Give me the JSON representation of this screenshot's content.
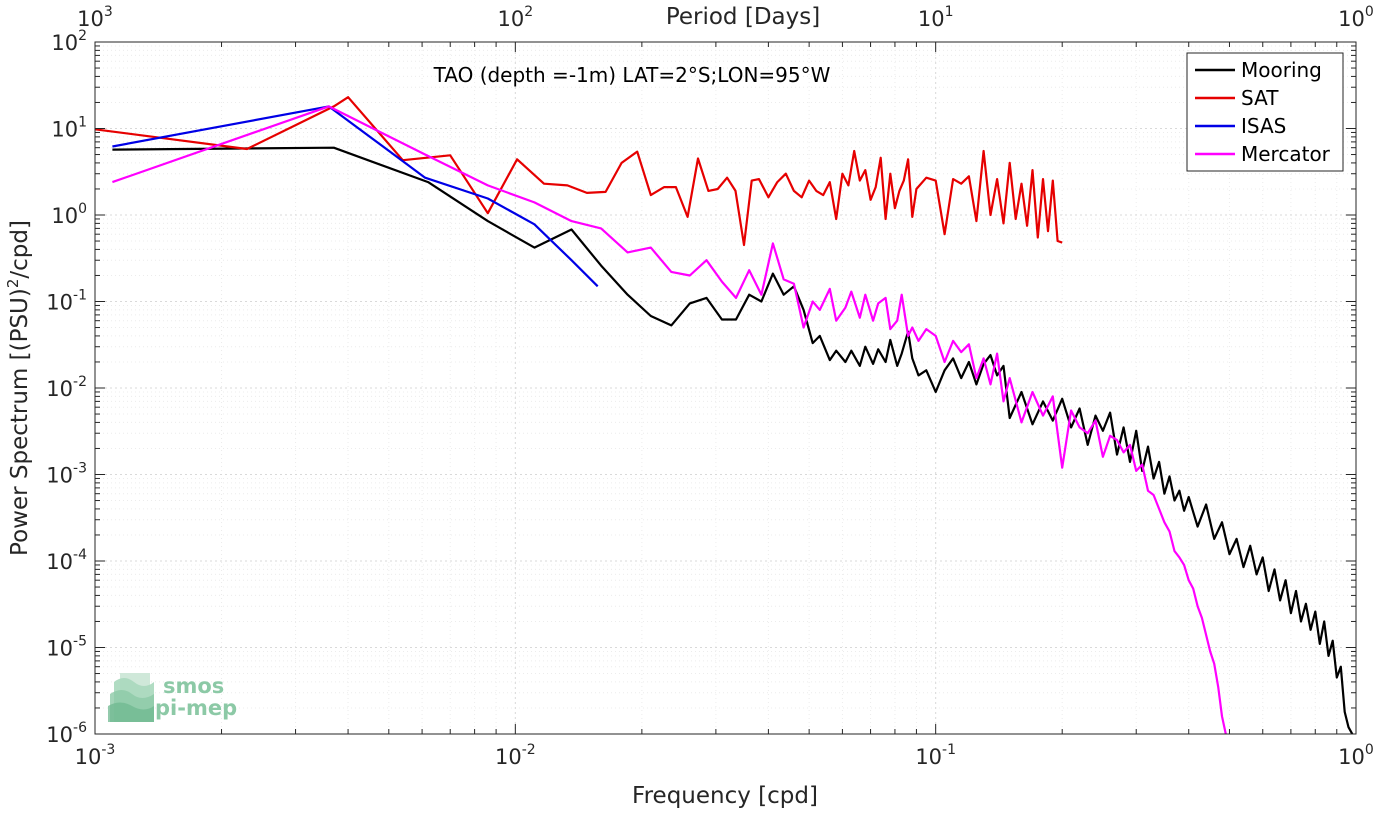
{
  "chart_data": {
    "type": "line",
    "title": "TAO (depth =-1m) LAT=2°S;LON=95°W",
    "xlabel": "Frequency [cpd]",
    "ylabel_prefix": "Power Spectrum [(PSU)",
    "ylabel_sup": "2",
    "ylabel_suffix": "/cpd]",
    "top_xlabel": "Period [Days]",
    "xscale": "log",
    "yscale": "log",
    "xlim": [
      0.001,
      1
    ],
    "ylim": [
      1e-06,
      100
    ],
    "grid": true,
    "minor_grid": true,
    "legend_position": "top-right",
    "x_ticks": [
      {
        "value": 0.001,
        "base": "10",
        "exp": "-3"
      },
      {
        "value": 0.01,
        "base": "10",
        "exp": "-2"
      },
      {
        "value": 0.1,
        "base": "10",
        "exp": "-1"
      },
      {
        "value": 1,
        "base": "10",
        "exp": "0"
      }
    ],
    "y_ticks": [
      {
        "value": 1e-06,
        "base": "10",
        "exp": "-6"
      },
      {
        "value": 1e-05,
        "base": "10",
        "exp": "-5"
      },
      {
        "value": 0.0001,
        "base": "10",
        "exp": "-4"
      },
      {
        "value": 0.001,
        "base": "10",
        "exp": "-3"
      },
      {
        "value": 0.01,
        "base": "10",
        "exp": "-2"
      },
      {
        "value": 0.1,
        "base": "10",
        "exp": "-1"
      },
      {
        "value": 1,
        "base": "10",
        "exp": "0"
      },
      {
        "value": 10,
        "base": "10",
        "exp": "1"
      },
      {
        "value": 100,
        "base": "10",
        "exp": "2"
      }
    ],
    "top_ticks": [
      {
        "value": 0.001,
        "base": "10",
        "exp": "3"
      },
      {
        "value": 0.01,
        "base": "10",
        "exp": "2"
      },
      {
        "value": 0.1,
        "base": "10",
        "exp": "1"
      },
      {
        "value": 1,
        "base": "10",
        "exp": "0"
      }
    ],
    "series": [
      {
        "name": "Mooring",
        "color": "#000000",
        "x": [
          0.0011,
          0.0037,
          0.0062,
          0.0086,
          0.0111,
          0.0136,
          0.016,
          0.0185,
          0.021,
          0.0235,
          0.026,
          0.0285,
          0.031,
          0.0335,
          0.036,
          0.0385,
          0.041,
          0.0435,
          0.046,
          0.0485,
          0.051,
          0.053,
          0.056,
          0.058,
          0.061,
          0.063,
          0.066,
          0.068,
          0.071,
          0.073,
          0.076,
          0.078,
          0.081,
          0.083,
          0.086,
          0.088,
          0.091,
          0.095,
          0.1,
          0.105,
          0.11,
          0.115,
          0.12,
          0.125,
          0.13,
          0.135,
          0.14,
          0.145,
          0.15,
          0.16,
          0.17,
          0.18,
          0.19,
          0.2,
          0.21,
          0.22,
          0.23,
          0.24,
          0.25,
          0.26,
          0.27,
          0.28,
          0.29,
          0.3,
          0.31,
          0.32,
          0.33,
          0.34,
          0.35,
          0.36,
          0.37,
          0.38,
          0.39,
          0.4,
          0.42,
          0.44,
          0.46,
          0.48,
          0.5,
          0.52,
          0.54,
          0.56,
          0.58,
          0.6,
          0.62,
          0.64,
          0.66,
          0.68,
          0.7,
          0.72,
          0.74,
          0.76,
          0.78,
          0.8,
          0.82,
          0.84,
          0.86,
          0.88,
          0.9,
          0.92,
          0.94,
          0.96,
          0.98
        ],
        "y": [
          5.7,
          6.0,
          2.4,
          0.85,
          0.42,
          0.68,
          0.26,
          0.12,
          0.068,
          0.053,
          0.095,
          0.11,
          0.062,
          0.062,
          0.12,
          0.1,
          0.21,
          0.12,
          0.15,
          0.08,
          0.033,
          0.04,
          0.021,
          0.027,
          0.02,
          0.027,
          0.018,
          0.03,
          0.019,
          0.028,
          0.02,
          0.036,
          0.018,
          0.025,
          0.045,
          0.022,
          0.014,
          0.016,
          0.009,
          0.016,
          0.022,
          0.013,
          0.02,
          0.011,
          0.019,
          0.024,
          0.014,
          0.018,
          0.0045,
          0.009,
          0.0038,
          0.007,
          0.0042,
          0.0075,
          0.0035,
          0.0058,
          0.0022,
          0.0048,
          0.0032,
          0.0052,
          0.0017,
          0.0035,
          0.0014,
          0.0032,
          0.0011,
          0.0021,
          0.0009,
          0.0014,
          0.0006,
          0.00095,
          0.0005,
          0.00065,
          0.00038,
          0.00055,
          0.00025,
          0.00045,
          0.00018,
          0.00028,
          0.00012,
          0.00018,
          8.5e-05,
          0.00015,
          7e-05,
          0.00011,
          4.5e-05,
          8e-05,
          3.5e-05,
          6e-05,
          2.5e-05,
          4.5e-05,
          2e-05,
          3.2e-05,
          1.6e-05,
          2.6e-05,
          1.1e-05,
          2e-05,
          8e-06,
          1.2e-05,
          4.5e-06,
          6e-06,
          1.8e-06,
          1.2e-06,
          8e-07
        ]
      },
      {
        "name": "SAT",
        "color": "#e60000",
        "x": [
          0.001,
          0.0023,
          0.0037,
          0.004,
          0.0054,
          0.007,
          0.0086,
          0.0101,
          0.0117,
          0.0133,
          0.0148,
          0.0164,
          0.0179,
          0.0195,
          0.021,
          0.0226,
          0.0241,
          0.0257,
          0.0272,
          0.0288,
          0.0303,
          0.0319,
          0.0334,
          0.035,
          0.0365,
          0.038,
          0.04,
          0.042,
          0.044,
          0.046,
          0.048,
          0.05,
          0.052,
          0.054,
          0.056,
          0.058,
          0.06,
          0.062,
          0.064,
          0.066,
          0.068,
          0.07,
          0.072,
          0.074,
          0.076,
          0.078,
          0.08,
          0.082,
          0.084,
          0.086,
          0.088,
          0.09,
          0.095,
          0.1,
          0.105,
          0.11,
          0.115,
          0.12,
          0.125,
          0.13,
          0.135,
          0.14,
          0.145,
          0.15,
          0.155,
          0.16,
          0.165,
          0.17,
          0.175,
          0.18,
          0.185,
          0.19,
          0.195,
          0.2
        ],
        "y": [
          9.8,
          5.8,
          18.0,
          23.0,
          4.3,
          4.9,
          1.05,
          4.4,
          2.3,
          2.2,
          1.8,
          1.85,
          4.0,
          5.4,
          1.7,
          2.1,
          2.1,
          0.95,
          4.5,
          1.9,
          2.0,
          2.7,
          1.9,
          0.45,
          2.5,
          2.6,
          1.6,
          2.4,
          3.0,
          1.9,
          1.6,
          2.5,
          1.9,
          1.7,
          2.4,
          0.9,
          3.0,
          2.2,
          5.5,
          2.5,
          3.3,
          1.5,
          2.1,
          4.6,
          0.9,
          3.0,
          1.2,
          1.9,
          2.5,
          4.4,
          0.95,
          2.0,
          2.7,
          2.5,
          0.6,
          2.6,
          2.3,
          2.8,
          0.85,
          5.5,
          1.0,
          2.6,
          0.8,
          4.0,
          0.9,
          2.3,
          0.75,
          3.3,
          0.55,
          2.6,
          0.65,
          2.5,
          0.5,
          0.48
        ]
      },
      {
        "name": "ISAS",
        "color": "#0000e6",
        "x": [
          0.0011,
          0.0036,
          0.0061,
          0.0086,
          0.0111,
          0.0136,
          0.0157
        ],
        "y": [
          6.2,
          18.0,
          2.7,
          1.55,
          0.78,
          0.3,
          0.15
        ]
      },
      {
        "name": "Mercator",
        "color": "#ff00ff",
        "x": [
          0.0011,
          0.0036,
          0.0061,
          0.0086,
          0.0111,
          0.0136,
          0.016,
          0.0185,
          0.021,
          0.0235,
          0.026,
          0.0285,
          0.031,
          0.0335,
          0.036,
          0.0385,
          0.041,
          0.0435,
          0.046,
          0.0485,
          0.051,
          0.053,
          0.056,
          0.058,
          0.061,
          0.063,
          0.066,
          0.068,
          0.071,
          0.073,
          0.076,
          0.078,
          0.081,
          0.083,
          0.086,
          0.088,
          0.091,
          0.095,
          0.1,
          0.105,
          0.11,
          0.115,
          0.12,
          0.125,
          0.13,
          0.135,
          0.14,
          0.145,
          0.15,
          0.16,
          0.17,
          0.18,
          0.19,
          0.2,
          0.21,
          0.22,
          0.23,
          0.24,
          0.25,
          0.26,
          0.27,
          0.28,
          0.29,
          0.3,
          0.31,
          0.32,
          0.33,
          0.34,
          0.35,
          0.36,
          0.37,
          0.38,
          0.39,
          0.4,
          0.41,
          0.42,
          0.43,
          0.44,
          0.45,
          0.46,
          0.47,
          0.48,
          0.49
        ],
        "y": [
          2.4,
          18.0,
          5.0,
          2.2,
          1.4,
          0.85,
          0.7,
          0.37,
          0.42,
          0.22,
          0.2,
          0.3,
          0.17,
          0.11,
          0.23,
          0.12,
          0.47,
          0.18,
          0.16,
          0.05,
          0.1,
          0.08,
          0.14,
          0.06,
          0.085,
          0.13,
          0.065,
          0.12,
          0.06,
          0.095,
          0.11,
          0.048,
          0.06,
          0.12,
          0.04,
          0.05,
          0.035,
          0.048,
          0.04,
          0.02,
          0.035,
          0.026,
          0.032,
          0.013,
          0.022,
          0.011,
          0.025,
          0.007,
          0.013,
          0.004,
          0.009,
          0.0048,
          0.008,
          0.0012,
          0.0055,
          0.0035,
          0.003,
          0.0042,
          0.0016,
          0.0028,
          0.0025,
          0.0018,
          0.0022,
          0.0011,
          0.0013,
          0.00065,
          0.00058,
          0.0004,
          0.00028,
          0.00022,
          0.00013,
          0.00011,
          9e-05,
          6e-05,
          4.8e-05,
          3e-05,
          2.2e-05,
          1.4e-05,
          9e-06,
          6.5e-06,
          3.5e-06,
          1.6e-06,
          7e-07
        ]
      }
    ]
  },
  "logo": {
    "line1": "smos",
    "line2": "pi-mep"
  }
}
